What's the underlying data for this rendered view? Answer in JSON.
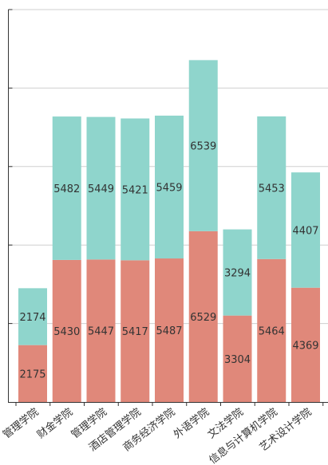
{
  "chart_data": {
    "type": "bar",
    "stacked": true,
    "categories": [
      "管理学院",
      "财金学院",
      "管理学院",
      "酒店管理学院",
      "商务经济学院",
      "外语学院",
      "文法学院",
      "信息与计算机学院",
      "艺术设计学院"
    ],
    "series": [
      {
        "values": [
          2175,
          5430,
          5447,
          5417,
          5487,
          6529,
          3304,
          5464,
          4369
        ],
        "color": "#e0887a"
      },
      {
        "values": [
          2174,
          5482,
          5449,
          5421,
          5459,
          6539,
          3294,
          5453,
          4407
        ],
        "color": "#8fd5cc"
      }
    ],
    "ylim": [
      0,
      15000
    ],
    "y_grid_step": 3000,
    "grid": true,
    "legend": "none"
  }
}
